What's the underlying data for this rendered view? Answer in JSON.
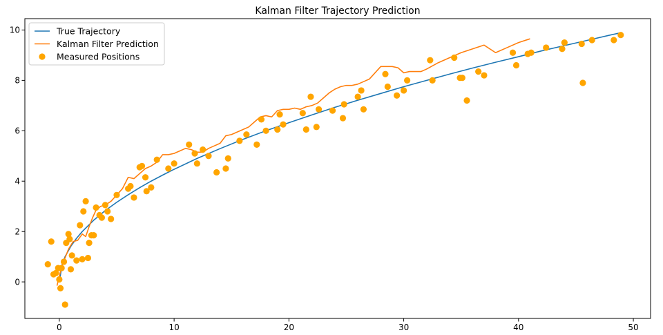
{
  "chart_data": {
    "type": "line",
    "title": "Kalman Filter Trajectory Prediction",
    "xlabel": "",
    "ylabel": "",
    "xlim": [
      -3,
      51.5
    ],
    "ylim": [
      -1.45,
      10.45
    ],
    "xticks": [
      0,
      10,
      20,
      30,
      40,
      50
    ],
    "yticks": [
      0,
      2,
      4,
      6,
      8,
      10
    ],
    "grid": false,
    "legend_position": "top-left",
    "series": [
      {
        "name": "True Trajectory",
        "kind": "line",
        "color": "#1f77b4",
        "x": [
          0,
          0.25,
          0.5,
          1,
          1.5,
          2,
          3,
          4,
          5,
          6,
          7,
          8,
          9,
          10,
          12,
          14,
          16,
          18,
          20,
          22,
          24,
          26,
          28,
          30,
          32,
          34,
          36,
          38,
          40,
          42,
          44,
          46,
          48,
          49
        ],
        "y": [
          0,
          0.7,
          1.0,
          1.41,
          1.73,
          2.0,
          2.45,
          2.83,
          3.16,
          3.46,
          3.74,
          4.0,
          4.24,
          4.47,
          4.9,
          5.29,
          5.66,
          6.0,
          6.32,
          6.63,
          6.93,
          7.21,
          7.48,
          7.75,
          8.0,
          8.25,
          8.49,
          8.72,
          8.94,
          9.17,
          9.38,
          9.59,
          9.8,
          9.9
        ]
      },
      {
        "name": "Kalman Filter Prediction",
        "kind": "line",
        "color": "#ff7f0e",
        "x": [
          -0.2,
          0.2,
          0.5,
          0.8,
          1.2,
          1.6,
          2.0,
          2.3,
          2.6,
          2.9,
          3.2,
          3.6,
          4.0,
          4.5,
          5.0,
          5.5,
          6.0,
          6.5,
          7.0,
          7.5,
          8.0,
          8.5,
          9.0,
          9.5,
          10.0,
          10.5,
          11.0,
          11.5,
          12.0,
          12.5,
          13.0,
          13.5,
          14.0,
          14.5,
          15.0,
          15.5,
          16.0,
          16.5,
          17.0,
          17.5,
          18.0,
          18.5,
          19.0,
          19.5,
          20.0,
          20.5,
          21.0,
          21.5,
          22.0,
          22.5,
          23.0,
          23.5,
          24.0,
          24.5,
          25.0,
          25.5,
          26.0,
          26.5,
          27.0,
          27.5,
          28.0,
          28.5,
          29.0,
          29.5,
          30.0,
          30.5,
          31.0,
          31.5,
          32.0,
          33.0,
          34.0,
          35.0,
          36.0,
          37.0,
          38.0,
          39.0,
          40.0,
          41.0
        ],
        "y": [
          -0.15,
          0.6,
          0.95,
          1.3,
          1.6,
          1.65,
          1.9,
          1.8,
          2.2,
          2.55,
          2.85,
          3.0,
          3.05,
          3.2,
          3.45,
          3.7,
          4.15,
          4.1,
          4.3,
          4.5,
          4.6,
          4.75,
          5.05,
          5.05,
          5.1,
          5.2,
          5.3,
          5.25,
          5.15,
          5.15,
          5.3,
          5.4,
          5.5,
          5.8,
          5.85,
          5.95,
          6.05,
          6.15,
          6.35,
          6.55,
          6.6,
          6.55,
          6.8,
          6.85,
          6.85,
          6.9,
          6.85,
          6.95,
          7.0,
          7.1,
          7.3,
          7.5,
          7.65,
          7.75,
          7.8,
          7.8,
          7.85,
          7.95,
          8.05,
          8.3,
          8.55,
          8.55,
          8.55,
          8.5,
          8.3,
          8.35,
          8.35,
          8.35,
          8.45,
          8.7,
          8.9,
          9.1,
          9.25,
          9.4,
          9.1,
          9.3,
          9.5,
          9.65
        ]
      },
      {
        "name": "Measured Positions",
        "kind": "scatter",
        "color": "#ffa500",
        "x": [
          -1.0,
          -0.7,
          -0.5,
          -0.3,
          -0.1,
          0.0,
          0.1,
          0.2,
          0.4,
          0.5,
          0.6,
          0.8,
          0.9,
          1.0,
          1.1,
          1.5,
          1.8,
          2.0,
          2.1,
          2.3,
          2.5,
          2.6,
          2.8,
          3.0,
          3.2,
          3.5,
          3.7,
          4.0,
          4.2,
          4.5,
          5.0,
          6.0,
          6.2,
          6.5,
          7.0,
          7.2,
          7.5,
          7.6,
          8.0,
          8.5,
          9.5,
          10.0,
          11.3,
          11.8,
          12.0,
          12.5,
          13.0,
          13.7,
          14.5,
          14.7,
          15.7,
          16.3,
          17.2,
          17.6,
          18.0,
          19.0,
          19.2,
          19.5,
          21.2,
          21.5,
          21.9,
          22.4,
          22.6,
          23.8,
          24.7,
          24.8,
          26.0,
          26.3,
          26.5,
          28.4,
          28.6,
          29.4,
          30.0,
          30.3,
          32.3,
          32.5,
          34.4,
          34.9,
          35.1,
          35.5,
          36.5,
          37.0,
          39.5,
          39.8,
          40.8,
          41.1,
          42.4,
          43.8,
          44.0,
          45.5,
          45.6,
          46.4,
          48.3,
          48.9
        ],
        "y": [
          0.7,
          1.6,
          0.3,
          0.35,
          0.55,
          0.1,
          -0.25,
          0.55,
          0.8,
          -0.9,
          1.55,
          1.9,
          1.7,
          0.5,
          1.05,
          0.85,
          2.25,
          0.9,
          2.8,
          3.2,
          0.95,
          1.55,
          1.85,
          1.85,
          2.95,
          2.65,
          2.55,
          3.05,
          2.8,
          2.5,
          3.45,
          3.7,
          3.8,
          3.35,
          4.55,
          4.6,
          4.15,
          3.6,
          3.75,
          4.85,
          4.5,
          4.7,
          5.45,
          5.1,
          4.7,
          5.25,
          5.0,
          4.35,
          4.5,
          4.9,
          5.6,
          5.85,
          5.45,
          6.45,
          6.0,
          6.05,
          6.65,
          6.25,
          6.7,
          6.05,
          7.35,
          6.15,
          6.85,
          6.8,
          6.5,
          7.05,
          7.35,
          7.6,
          6.85,
          8.25,
          7.75,
          7.4,
          7.6,
          8.0,
          8.8,
          8.0,
          8.9,
          8.1,
          8.1,
          7.2,
          8.35,
          8.2,
          9.1,
          8.6,
          9.05,
          9.1,
          9.3,
          9.25,
          9.5,
          9.45,
          7.9,
          9.6,
          9.6,
          9.8
        ]
      }
    ]
  }
}
